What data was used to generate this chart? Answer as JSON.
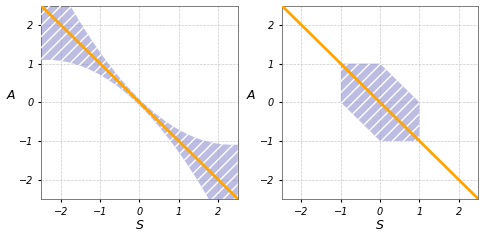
{
  "xlim": [
    -2.5,
    2.5
  ],
  "ylim": [
    -2.5,
    2.5
  ],
  "xticks": [
    -2,
    -1,
    0,
    1,
    2
  ],
  "yticks": [
    -2,
    -1,
    0,
    1,
    2
  ],
  "xlabel": "$S$",
  "ylabel": "$A$",
  "line_color": "#FFA500",
  "line_width": 2.0,
  "shade_color": "#8888cc",
  "shade_alpha": 0.55,
  "hatch_pattern": "///",
  "hatch_color": "white",
  "background_color": "#ffffff",
  "grid_color": "#bbbbbb",
  "grid_style": "--",
  "grid_alpha": 0.8,
  "tick_fontsize": 7,
  "label_fontsize": 9
}
